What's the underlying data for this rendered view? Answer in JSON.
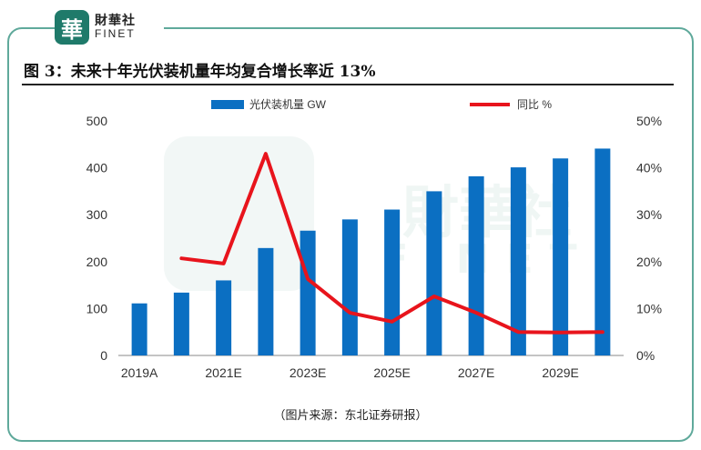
{
  "header": {
    "logo_char": "華",
    "logo_cn": "財華社",
    "logo_en": "FINET"
  },
  "figure": {
    "title": "图 3：未来十年光伏装机量年均复合增长率近 13%",
    "source": "（图片来源：东北证券研报）"
  },
  "colors": {
    "bar": "#0b6fc2",
    "line": "#e8141c",
    "frame": "#5fa99b",
    "logo": "#1f7a6a"
  },
  "chart_data": {
    "type": "bar",
    "categories": [
      "2019A",
      "2020E",
      "2021E",
      "2022E",
      "2023E",
      "2024E",
      "2025E",
      "2026E",
      "2027E",
      "2028E",
      "2029E",
      "2030E"
    ],
    "tick_labels": [
      "2019A",
      "",
      "2021E",
      "",
      "2023E",
      "",
      "2025E",
      "",
      "2027E",
      "",
      "2029E",
      ""
    ],
    "series": [
      {
        "name": "光伏装机量 GW",
        "type": "bar",
        "axis": "left",
        "values": [
          111,
          134,
          160,
          229,
          266,
          290,
          311,
          350,
          382,
          401,
          420,
          441
        ]
      },
      {
        "name": "同比 %",
        "type": "line",
        "axis": "right",
        "values": [
          null,
          20.7,
          19.6,
          43.0,
          16.3,
          9.1,
          7.2,
          12.6,
          9.1,
          5.0,
          4.9,
          5.0
        ]
      }
    ],
    "y_left": {
      "min": 0,
      "max": 500,
      "ticks": [
        0,
        100,
        200,
        300,
        400,
        500
      ]
    },
    "y_right": {
      "min": 0,
      "max": 50,
      "ticks": [
        "0%",
        "10%",
        "20%",
        "30%",
        "40%",
        "50%"
      ]
    },
    "legend_position": "top-center",
    "grid": false
  }
}
